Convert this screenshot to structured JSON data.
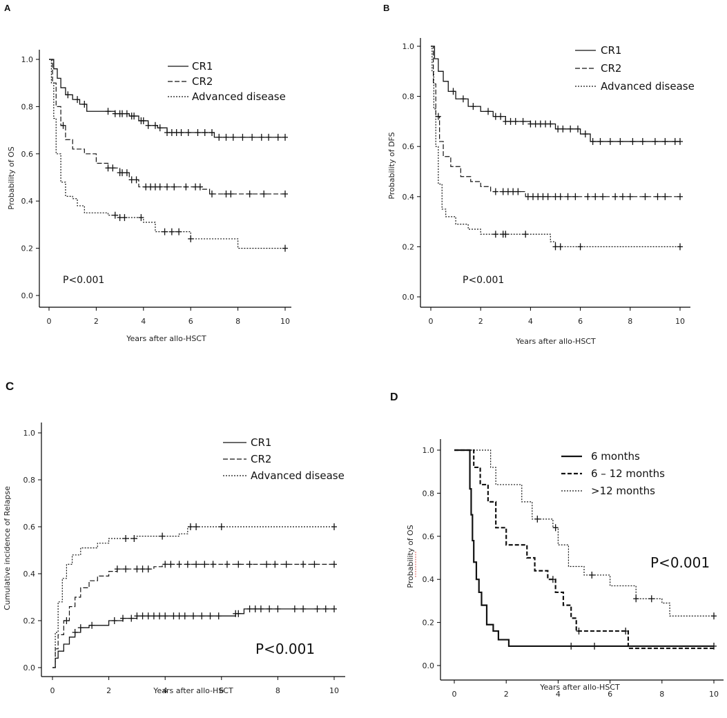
{
  "chart_data": [
    {
      "type": "line",
      "panel": "A",
      "title": "",
      "xlabel": "Years after allo-HSCT",
      "ylabel": "Probability of OS",
      "xlim": [
        0,
        10
      ],
      "ylim": [
        0,
        1
      ],
      "x_ticks": [
        "0",
        "2",
        "4",
        "6",
        "8",
        "10"
      ],
      "y_ticks": [
        "0.0",
        "0.2",
        "0.4",
        "0.6",
        "0.8",
        "1.0"
      ],
      "legend_position": "top-right",
      "annotation": "P<0.001",
      "series": [
        {
          "name": "CR1",
          "style": "solid",
          "steps": [
            [
              0,
              1.0
            ],
            [
              0.2,
              0.96
            ],
            [
              0.35,
              0.92
            ],
            [
              0.5,
              0.88
            ],
            [
              0.7,
              0.85
            ],
            [
              1.0,
              0.83
            ],
            [
              1.3,
              0.81
            ],
            [
              1.6,
              0.78
            ],
            [
              2.8,
              0.77
            ],
            [
              3.4,
              0.76
            ],
            [
              3.8,
              0.74
            ],
            [
              4.2,
              0.72
            ],
            [
              4.6,
              0.71
            ],
            [
              5.0,
              0.69
            ],
            [
              7.0,
              0.67
            ],
            [
              10,
              0.67
            ]
          ],
          "censored": [
            0.8,
            1.2,
            1.5,
            2.5,
            2.8,
            3.0,
            3.1,
            3.3,
            3.5,
            3.6,
            3.9,
            4.0,
            4.2,
            4.5,
            4.7,
            5.0,
            5.2,
            5.4,
            5.6,
            5.9,
            6.3,
            6.6,
            6.9,
            7.2,
            7.5,
            7.8,
            8.2,
            8.6,
            9.0,
            9.3,
            9.7,
            10
          ]
        },
        {
          "name": "CR2",
          "style": "dashed",
          "steps": [
            [
              0,
              1.0
            ],
            [
              0.15,
              0.9
            ],
            [
              0.3,
              0.8
            ],
            [
              0.5,
              0.72
            ],
            [
              0.7,
              0.66
            ],
            [
              1.0,
              0.62
            ],
            [
              1.5,
              0.6
            ],
            [
              2.0,
              0.56
            ],
            [
              2.5,
              0.54
            ],
            [
              3.0,
              0.52
            ],
            [
              3.4,
              0.49
            ],
            [
              3.8,
              0.46
            ],
            [
              6.5,
              0.45
            ],
            [
              6.8,
              0.43
            ],
            [
              10,
              0.43
            ]
          ],
          "censored": [
            0.6,
            2.5,
            2.7,
            3.0,
            3.1,
            3.3,
            3.5,
            3.7,
            4.1,
            4.3,
            4.5,
            4.7,
            5.0,
            5.3,
            5.8,
            6.2,
            6.4,
            6.9,
            7.5,
            7.7,
            8.5,
            9.1,
            10
          ]
        },
        {
          "name": "Advanced disease",
          "style": "dotted",
          "steps": [
            [
              0,
              1.0
            ],
            [
              0.1,
              0.9
            ],
            [
              0.2,
              0.75
            ],
            [
              0.3,
              0.6
            ],
            [
              0.5,
              0.48
            ],
            [
              0.7,
              0.42
            ],
            [
              1.0,
              0.41
            ],
            [
              1.2,
              0.38
            ],
            [
              1.5,
              0.35
            ],
            [
              2.5,
              0.34
            ],
            [
              3.0,
              0.33
            ],
            [
              4.0,
              0.31
            ],
            [
              4.5,
              0.27
            ],
            [
              6.0,
              0.24
            ],
            [
              8.0,
              0.2
            ],
            [
              10,
              0.2
            ]
          ],
          "censored": [
            2.8,
            3.0,
            3.2,
            3.9,
            4.9,
            5.2,
            5.5,
            6.0,
            10
          ]
        }
      ]
    },
    {
      "type": "line",
      "panel": "B",
      "title": "",
      "xlabel": "Years after allo-HSCT",
      "ylabel": "Probability of DFS",
      "xlim": [
        0,
        10
      ],
      "ylim": [
        0,
        1
      ],
      "x_ticks": [
        "0",
        "2",
        "4",
        "6",
        "8",
        "10"
      ],
      "y_ticks": [
        "0.0",
        "0.2",
        "0.4",
        "0.6",
        "0.8",
        "1.0"
      ],
      "legend_position": "top-right",
      "annotation": "P<0.001",
      "series": [
        {
          "name": "CR1",
          "style": "solid",
          "steps": [
            [
              0,
              1.0
            ],
            [
              0.15,
              0.95
            ],
            [
              0.3,
              0.9
            ],
            [
              0.5,
              0.86
            ],
            [
              0.7,
              0.82
            ],
            [
              1.0,
              0.79
            ],
            [
              1.5,
              0.76
            ],
            [
              2.0,
              0.74
            ],
            [
              2.5,
              0.72
            ],
            [
              3.0,
              0.7
            ],
            [
              4.0,
              0.69
            ],
            [
              5.0,
              0.67
            ],
            [
              6.0,
              0.65
            ],
            [
              6.4,
              0.62
            ],
            [
              10,
              0.62
            ]
          ],
          "censored": [
            0.9,
            1.3,
            1.7,
            2.3,
            2.6,
            2.8,
            3.0,
            3.2,
            3.4,
            3.7,
            4.0,
            4.2,
            4.4,
            4.6,
            4.8,
            5.1,
            5.3,
            5.6,
            5.9,
            6.2,
            6.5,
            6.8,
            7.2,
            7.6,
            8.1,
            8.5,
            9.0,
            9.4,
            9.8,
            10
          ]
        },
        {
          "name": "CR2",
          "style": "dashed",
          "steps": [
            [
              0,
              1.0
            ],
            [
              0.1,
              0.85
            ],
            [
              0.2,
              0.72
            ],
            [
              0.35,
              0.62
            ],
            [
              0.5,
              0.56
            ],
            [
              0.8,
              0.52
            ],
            [
              1.2,
              0.48
            ],
            [
              1.6,
              0.46
            ],
            [
              2.0,
              0.44
            ],
            [
              2.4,
              0.42
            ],
            [
              3.8,
              0.4
            ],
            [
              10,
              0.4
            ]
          ],
          "censored": [
            0.3,
            2.6,
            2.9,
            3.1,
            3.3,
            3.5,
            3.9,
            4.1,
            4.3,
            4.5,
            4.7,
            5.0,
            5.2,
            5.5,
            5.8,
            6.3,
            6.6,
            6.9,
            7.4,
            7.7,
            8.0,
            8.6,
            9.1,
            9.4,
            10
          ]
        },
        {
          "name": "Advanced disease",
          "style": "dotted",
          "steps": [
            [
              0,
              1.0
            ],
            [
              0.05,
              0.9
            ],
            [
              0.12,
              0.75
            ],
            [
              0.2,
              0.6
            ],
            [
              0.3,
              0.45
            ],
            [
              0.45,
              0.35
            ],
            [
              0.6,
              0.32
            ],
            [
              1.0,
              0.29
            ],
            [
              1.5,
              0.27
            ],
            [
              2.0,
              0.25
            ],
            [
              4.8,
              0.22
            ],
            [
              5.0,
              0.2
            ],
            [
              10,
              0.2
            ]
          ],
          "censored": [
            2.6,
            2.9,
            3.0,
            3.8,
            5.0,
            5.2,
            6.0,
            10
          ]
        }
      ]
    },
    {
      "type": "line",
      "panel": "C",
      "title": "",
      "xlabel": "Years after allo-HSCT",
      "ylabel": "Cumulative incidence of Relapse",
      "xlim": [
        0,
        10
      ],
      "ylim": [
        0,
        1
      ],
      "x_ticks": [
        "0",
        "2",
        "4",
        "6",
        "8",
        "10"
      ],
      "y_ticks": [
        "0.0",
        "0.2",
        "0.4",
        "0.6",
        "0.8",
        "1.0"
      ],
      "legend_position": "top-right",
      "annotation": "P<0.001",
      "series": [
        {
          "name": "CR1",
          "style": "solid",
          "steps": [
            [
              0,
              0.0
            ],
            [
              0.1,
              0.04
            ],
            [
              0.2,
              0.07
            ],
            [
              0.4,
              0.1
            ],
            [
              0.6,
              0.13
            ],
            [
              0.8,
              0.15
            ],
            [
              1.0,
              0.17
            ],
            [
              1.3,
              0.18
            ],
            [
              2.0,
              0.2
            ],
            [
              2.5,
              0.21
            ],
            [
              3.0,
              0.22
            ],
            [
              6.5,
              0.23
            ],
            [
              6.8,
              0.25
            ],
            [
              10,
              0.25
            ]
          ],
          "censored": [
            0.8,
            1.0,
            1.4,
            2.2,
            2.5,
            2.8,
            3.0,
            3.2,
            3.4,
            3.6,
            3.8,
            4.0,
            4.3,
            4.5,
            4.7,
            5.0,
            5.3,
            5.6,
            5.9,
            6.5,
            6.6,
            7.0,
            7.2,
            7.4,
            7.7,
            8.0,
            8.6,
            8.9,
            9.4,
            9.7,
            10
          ]
        },
        {
          "name": "CR2",
          "style": "dashed",
          "steps": [
            [
              0,
              0.0
            ],
            [
              0.1,
              0.08
            ],
            [
              0.2,
              0.14
            ],
            [
              0.4,
              0.2
            ],
            [
              0.6,
              0.26
            ],
            [
              0.8,
              0.3
            ],
            [
              1.0,
              0.34
            ],
            [
              1.3,
              0.37
            ],
            [
              1.6,
              0.39
            ],
            [
              2.0,
              0.41
            ],
            [
              2.3,
              0.42
            ],
            [
              3.6,
              0.43
            ],
            [
              3.9,
              0.44
            ],
            [
              10,
              0.44
            ]
          ],
          "censored": [
            0.5,
            2.3,
            2.6,
            3.0,
            3.2,
            3.4,
            4.0,
            4.2,
            4.5,
            4.8,
            5.1,
            5.4,
            5.7,
            6.2,
            6.6,
            7.0,
            7.6,
            7.9,
            8.3,
            8.9,
            9.3,
            10
          ]
        },
        {
          "name": "Advanced disease",
          "style": "dotted",
          "steps": [
            [
              0,
              0.0
            ],
            [
              0.1,
              0.15
            ],
            [
              0.2,
              0.28
            ],
            [
              0.35,
              0.38
            ],
            [
              0.5,
              0.44
            ],
            [
              0.7,
              0.48
            ],
            [
              1.0,
              0.51
            ],
            [
              1.6,
              0.53
            ],
            [
              2.0,
              0.55
            ],
            [
              3.0,
              0.56
            ],
            [
              4.5,
              0.57
            ],
            [
              4.8,
              0.6
            ],
            [
              10,
              0.6
            ]
          ],
          "censored": [
            2.6,
            2.9,
            3.9,
            4.9,
            5.1,
            6.0,
            10
          ]
        }
      ]
    },
    {
      "type": "line",
      "panel": "D",
      "title": "",
      "xlabel": "Years after allo-HSCT",
      "ylabel": "Probability of OS",
      "xlim": [
        0,
        10
      ],
      "ylim": [
        0,
        1
      ],
      "x_ticks": [
        "0",
        "2",
        "4",
        "6",
        "8",
        "10"
      ],
      "y_ticks": [
        "0.0",
        "0.2",
        "0.4",
        "0.6",
        "0.8",
        "1.0"
      ],
      "legend_position": "top-right",
      "annotation": "P<0.001",
      "series": [
        {
          "name": "6 months",
          "style": "solid-thick",
          "steps": [
            [
              0,
              1.0
            ],
            [
              0.55,
              1.0
            ],
            [
              0.6,
              0.82
            ],
            [
              0.65,
              0.7
            ],
            [
              0.7,
              0.58
            ],
            [
              0.75,
              0.48
            ],
            [
              0.85,
              0.4
            ],
            [
              0.95,
              0.34
            ],
            [
              1.05,
              0.28
            ],
            [
              1.25,
              0.19
            ],
            [
              1.5,
              0.16
            ],
            [
              1.7,
              0.12
            ],
            [
              2.1,
              0.09
            ],
            [
              10,
              0.09
            ]
          ],
          "censored": [
            4.5,
            5.4,
            10
          ]
        },
        {
          "name": "6 – 12 months",
          "style": "dashed-thick",
          "steps": [
            [
              0,
              1.0
            ],
            [
              0.7,
              1.0
            ],
            [
              0.75,
              0.92
            ],
            [
              1.0,
              0.84
            ],
            [
              1.3,
              0.76
            ],
            [
              1.6,
              0.64
            ],
            [
              2.0,
              0.56
            ],
            [
              2.8,
              0.5
            ],
            [
              3.1,
              0.44
            ],
            [
              3.6,
              0.4
            ],
            [
              3.9,
              0.34
            ],
            [
              4.2,
              0.28
            ],
            [
              4.5,
              0.22
            ],
            [
              4.7,
              0.16
            ],
            [
              6.5,
              0.16
            ],
            [
              6.7,
              0.08
            ],
            [
              10,
              0.08
            ]
          ],
          "censored": [
            3.8,
            4.8,
            6.6
          ]
        },
        {
          "name": ">12 months",
          "style": "dotted",
          "steps": [
            [
              0,
              1.0
            ],
            [
              1.2,
              1.0
            ],
            [
              1.4,
              0.92
            ],
            [
              1.6,
              0.84
            ],
            [
              2.6,
              0.76
            ],
            [
              3.0,
              0.68
            ],
            [
              3.8,
              0.64
            ],
            [
              4.0,
              0.56
            ],
            [
              4.4,
              0.46
            ],
            [
              5.0,
              0.42
            ],
            [
              6.0,
              0.37
            ],
            [
              7.0,
              0.31
            ],
            [
              8.0,
              0.29
            ],
            [
              8.3,
              0.23
            ],
            [
              10,
              0.23
            ]
          ],
          "censored": [
            3.2,
            3.9,
            5.3,
            7.0,
            7.6,
            10
          ]
        }
      ]
    }
  ]
}
